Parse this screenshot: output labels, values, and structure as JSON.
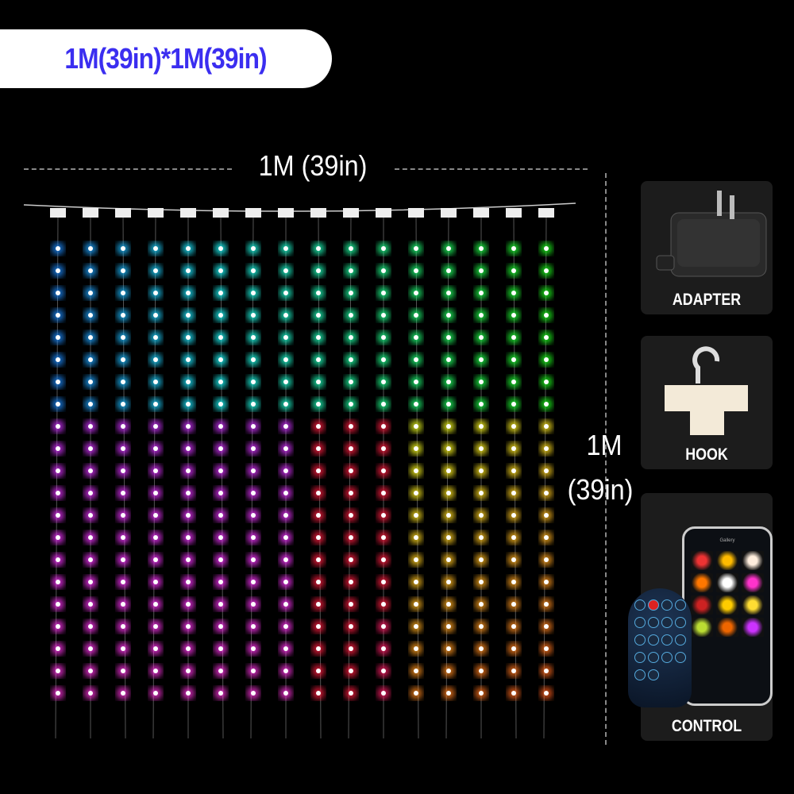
{
  "badge": {
    "text": "1M(39in)*1M(39in)",
    "color": "#3b2ef0"
  },
  "dimensions": {
    "width_label": "1M (39in)",
    "height_label_line1": "1M",
    "height_label_line2": "(39in)"
  },
  "curtain": {
    "strands": 16,
    "leds_per_strand": 21
  },
  "accessories": [
    {
      "label": "ADAPTER",
      "icon": "power-adapter-icon"
    },
    {
      "label": "HOOK",
      "icon": "hook-icon"
    },
    {
      "label": "CONTROL",
      "icon": "phone-remote-icon",
      "app_screen_title": "Gallery"
    }
  ]
}
